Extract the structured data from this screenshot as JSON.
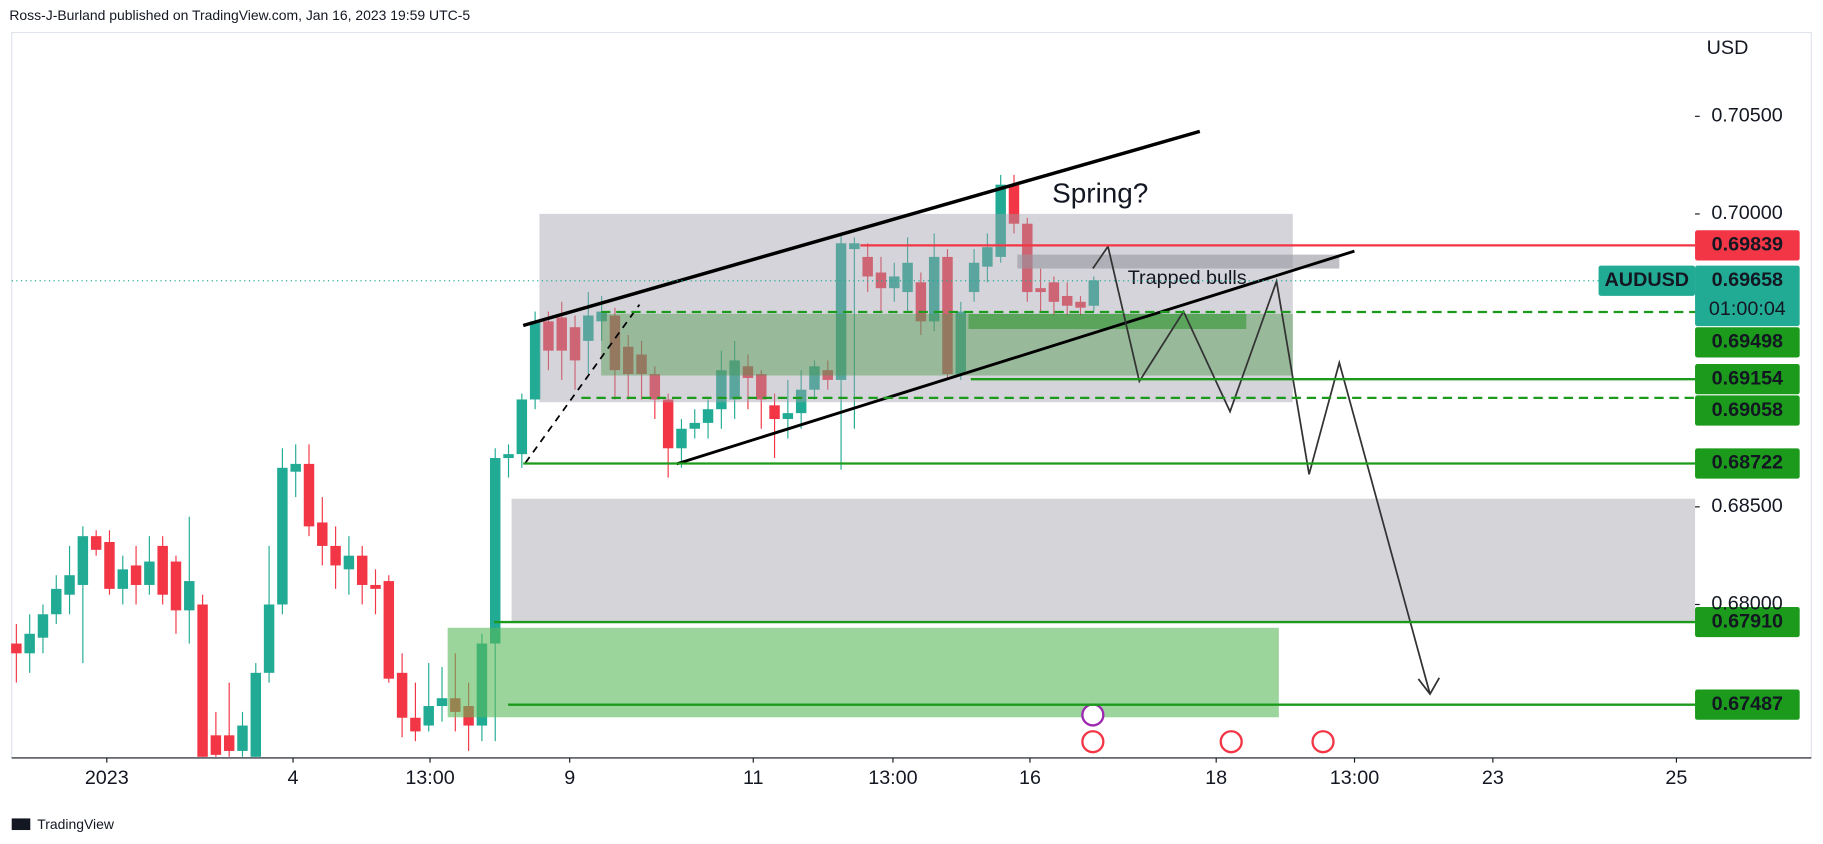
{
  "header": "Ross-J-Burland published on TradingView.com, Jan 16, 2023 19:59 UTC-5",
  "footer": "TradingView",
  "chart_data": {
    "type": "candlestick",
    "currency": "USD",
    "up_color": "#22ab94",
    "down_color": "#f23645",
    "open": [
      0.678,
      0.6775,
      0.6783,
      0.6795,
      0.6805,
      0.681,
      0.6835,
      0.6832,
      0.6808,
      0.682,
      0.681,
      0.683,
      0.6822,
      0.6797,
      0.68,
      0.6733,
      0.6733,
      0.6725,
      0.6722,
      0.6765,
      0.68,
      0.6868,
      0.6872,
      0.6842,
      0.683,
      0.6818,
      0.6825,
      0.681,
      0.6812,
      0.6765,
      0.6742,
      0.6738,
      0.6748,
      0.6752,
      0.6748,
      0.6738,
      0.678,
      0.6875,
      0.6877,
      0.6905,
      0.6945,
      0.6947,
      0.6942,
      0.6935,
      0.6945,
      0.6948,
      0.6932,
      0.6928,
      0.6918,
      0.6905,
      0.688,
      0.689,
      0.6893,
      0.69,
      0.6905,
      0.6922,
      0.6918,
      0.6902,
      0.6895,
      0.6898,
      0.691,
      0.692,
      0.6915,
      0.6982,
      0.6978,
      0.697,
      0.6962,
      0.696,
      0.6965,
      0.6945,
      0.6978,
      0.6918,
      0.696,
      0.6973,
      0.6978,
      0.7015,
      0.6995,
      0.6962,
      0.6965,
      0.6958,
      0.6955,
      0.6953
    ],
    "high": [
      0.679,
      0.6795,
      0.68,
      0.6815,
      0.683,
      0.684,
      0.6838,
      0.6838,
      0.6825,
      0.683,
      0.6835,
      0.6835,
      0.6825,
      0.6845,
      0.6805,
      0.6745,
      0.676,
      0.6745,
      0.677,
      0.683,
      0.688,
      0.6882,
      0.6882,
      0.6855,
      0.684,
      0.6835,
      0.683,
      0.6818,
      0.6815,
      0.6775,
      0.676,
      0.677,
      0.6768,
      0.6775,
      0.676,
      0.6785,
      0.688,
      0.6882,
      0.6908,
      0.695,
      0.695,
      0.6955,
      0.6948,
      0.696,
      0.6958,
      0.6952,
      0.6938,
      0.6935,
      0.6922,
      0.6908,
      0.6895,
      0.69,
      0.6905,
      0.693,
      0.6935,
      0.6928,
      0.692,
      0.6908,
      0.6915,
      0.692,
      0.6925,
      0.6925,
      0.699,
      0.6988,
      0.6985,
      0.6978,
      0.6975,
      0.6988,
      0.697,
      0.699,
      0.6982,
      0.6955,
      0.6982,
      0.699,
      0.702,
      0.702,
      0.6998,
      0.6972,
      0.6968,
      0.6965,
      0.6958,
      0.6968
    ],
    "low": [
      0.676,
      0.6765,
      0.6775,
      0.679,
      0.6795,
      0.677,
      0.6825,
      0.6805,
      0.68,
      0.68,
      0.6805,
      0.68,
      0.6785,
      0.678,
      0.6722,
      0.6722,
      0.6722,
      0.6722,
      0.6722,
      0.676,
      0.6795,
      0.6855,
      0.6835,
      0.682,
      0.6808,
      0.6805,
      0.68,
      0.6795,
      0.676,
      0.6732,
      0.673,
      0.6735,
      0.674,
      0.6735,
      0.6725,
      0.673,
      0.673,
      0.6865,
      0.687,
      0.69,
      0.692,
      0.6915,
      0.691,
      0.6918,
      0.6935,
      0.6905,
      0.6905,
      0.6905,
      0.6895,
      0.6865,
      0.687,
      0.6885,
      0.6885,
      0.689,
      0.6895,
      0.69,
      0.689,
      0.6875,
      0.6885,
      0.689,
      0.6905,
      0.691,
      0.6869,
      0.689,
      0.696,
      0.695,
      0.6955,
      0.695,
      0.6938,
      0.694,
      0.6915,
      0.6915,
      0.6955,
      0.6965,
      0.6975,
      0.699,
      0.6955,
      0.695,
      0.6948,
      0.6948,
      0.6948,
      0.695
    ],
    "close": [
      0.6775,
      0.6785,
      0.6795,
      0.6808,
      0.6815,
      0.6835,
      0.6828,
      0.6808,
      0.6818,
      0.681,
      0.6822,
      0.6805,
      0.6797,
      0.6812,
      0.6722,
      0.6723,
      0.6725,
      0.6738,
      0.6765,
      0.68,
      0.687,
      0.6872,
      0.684,
      0.683,
      0.682,
      0.6825,
      0.681,
      0.6808,
      0.6762,
      0.6742,
      0.6735,
      0.6748,
      0.6752,
      0.6745,
      0.6738,
      0.678,
      0.6875,
      0.6877,
      0.6905,
      0.6945,
      0.693,
      0.693,
      0.6925,
      0.6948,
      0.695,
      0.692,
      0.6918,
      0.6918,
      0.6905,
      0.688,
      0.689,
      0.6893,
      0.69,
      0.692,
      0.6925,
      0.6916,
      0.6905,
      0.6895,
      0.6898,
      0.691,
      0.6922,
      0.6915,
      0.6985,
      0.6985,
      0.6968,
      0.6962,
      0.6968,
      0.6975,
      0.6945,
      0.6978,
      0.6918,
      0.695,
      0.6975,
      0.6983,
      0.7015,
      0.6995,
      0.696,
      0.696,
      0.6955,
      0.6953,
      0.6952,
      0.6966
    ],
    "xlim": [
      -0.35,
      126.2
    ],
    "xticks": [
      {
        "value": 6.8,
        "label": "2023"
      },
      {
        "value": 20.8,
        "label": "4"
      },
      {
        "value": 31.1,
        "label": "13:00"
      },
      {
        "value": 41.6,
        "label": "9"
      },
      {
        "value": 55.4,
        "label": "11"
      },
      {
        "value": 65.9,
        "label": "13:00"
      },
      {
        "value": 76.2,
        "label": "16"
      },
      {
        "value": 90.2,
        "label": "18"
      },
      {
        "value": 100.6,
        "label": "13:00"
      },
      {
        "value": 111.0,
        "label": "23"
      },
      {
        "value": 124.8,
        "label": "25"
      }
    ],
    "ylim": [
      0.67214,
      0.70929
    ],
    "yticks": [
      {
        "value": 0.705,
        "label": "0.70500"
      },
      {
        "value": 0.7,
        "label": "0.70000"
      },
      {
        "value": 0.685,
        "label": "0.68500"
      },
      {
        "value": 0.68,
        "label": "0.68000"
      }
    ],
    "levels": [
      {
        "value": 0.69839,
        "label": "0.69839",
        "color": "#f23645",
        "style": "solid"
      },
      {
        "value": 0.69658,
        "label": "0.69658",
        "color": "#22ab94",
        "style": "dotted",
        "symbol": "AUDUSD",
        "countdown": "01:00:04"
      },
      {
        "value": 0.69498,
        "label": "0.69498",
        "color": "#1b9a1b",
        "style": "dashed"
      },
      {
        "value": 0.69154,
        "label": "0.69154",
        "color": "#1b9a1b",
        "style": "solid"
      },
      {
        "value": 0.69058,
        "label": "0.69058",
        "color": "#1b9a1b",
        "style": "dashed"
      },
      {
        "value": 0.68722,
        "label": "0.68722",
        "color": "#1b9a1b",
        "style": "solid"
      },
      {
        "value": 0.6791,
        "label": "0.67910",
        "color": "#1b9a1b",
        "style": "solid"
      },
      {
        "value": 0.67487,
        "label": "0.67487",
        "color": "#1b9a1b",
        "style": "solid"
      }
    ],
    "annotations": [
      "Spring?",
      "Trapped bulls"
    ]
  }
}
